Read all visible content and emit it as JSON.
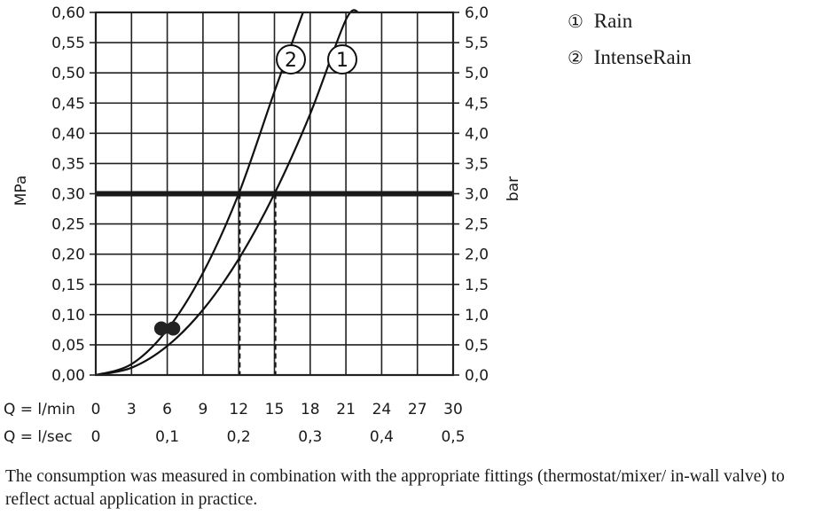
{
  "chart_data": {
    "type": "line",
    "y_left": {
      "label": "MPa",
      "range": [
        0,
        0.6
      ],
      "ticks": [
        "0,00",
        "0,05",
        "0,10",
        "0,15",
        "0,20",
        "0,25",
        "0,30",
        "0,35",
        "0,40",
        "0,45",
        "0,50",
        "0,55",
        "0,60"
      ]
    },
    "y_right": {
      "label": "bar",
      "range": [
        0,
        6.0
      ],
      "ticks": [
        "0,0",
        "0,5",
        "1,0",
        "1,5",
        "2,0",
        "2,5",
        "3,0",
        "3,5",
        "4,0",
        "4,5",
        "5,0",
        "5,5",
        "6,0"
      ]
    },
    "x_axis": {
      "label": "Q = l/min",
      "range": [
        0,
        30
      ],
      "ticks": [
        "0",
        "3",
        "6",
        "9",
        "12",
        "15",
        "18",
        "21",
        "24",
        "27",
        "30"
      ]
    },
    "x_axis_secondary": {
      "label": "Q = l/sec",
      "ticks": [
        {
          "value": 0,
          "label": "0"
        },
        {
          "value": 6,
          "label": "0,1"
        },
        {
          "value": 12,
          "label": "0,2"
        },
        {
          "value": 18,
          "label": "0,3"
        },
        {
          "value": 24,
          "label": "0,4"
        },
        {
          "value": 30,
          "label": "0,5"
        }
      ]
    },
    "series": [
      {
        "name": "Rain",
        "marker": "1",
        "x": [
          0,
          3,
          6,
          9,
          12,
          15,
          18,
          21,
          22.1
        ],
        "y": [
          0,
          0.012,
          0.048,
          0.108,
          0.192,
          0.3,
          0.432,
          0.588,
          0.6
        ]
      },
      {
        "name": "IntenseRain",
        "marker": "2",
        "x": [
          0,
          3,
          6,
          9,
          12,
          15,
          17.4
        ],
        "y": [
          0,
          0.018,
          0.075,
          0.169,
          0.3,
          0.469,
          0.6
        ]
      }
    ],
    "reference_line": {
      "y": 0.3
    },
    "dashed_drops": [
      12.1,
      15.1
    ],
    "points": [
      {
        "x": 5.5,
        "y": 0.077
      },
      {
        "x": 6.5,
        "y": 0.077
      }
    ],
    "grid": true
  },
  "legend": [
    {
      "num": "①",
      "label": "Rain"
    },
    {
      "num": "②",
      "label": "IntenseRain"
    }
  ],
  "footnote": "The consumption was measured in combination with the appropriate fittings (thermostat/mixer/ in-wall valve) to reflect actual application in practice."
}
